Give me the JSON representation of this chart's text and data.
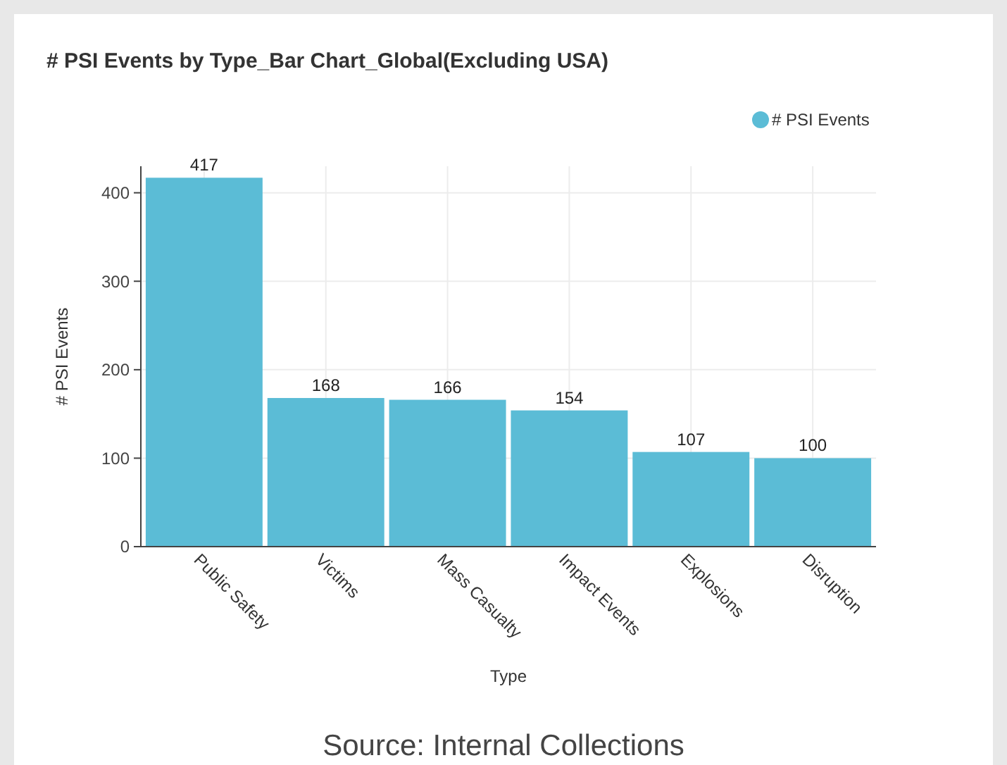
{
  "chart_data": {
    "type": "bar",
    "title": "# PSI Events by Type_Bar Chart_Global(Excluding USA)",
    "xlabel": "Type",
    "ylabel": "# PSI Events",
    "categories": [
      "Public Safety",
      "Victims",
      "Mass Casualty",
      "Impact Events",
      "Explosions",
      "Disruption"
    ],
    "series": [
      {
        "name": "# PSI Events",
        "color": "#5bbcd6",
        "values": [
          417,
          168,
          166,
          154,
          107,
          100
        ]
      }
    ],
    "ylim": [
      0,
      430
    ],
    "yticks": [
      0,
      100,
      200,
      300,
      400
    ],
    "grid": true,
    "legend": "top right",
    "data_labels": true,
    "annotations": [
      "Source: Internal Collections"
    ]
  }
}
